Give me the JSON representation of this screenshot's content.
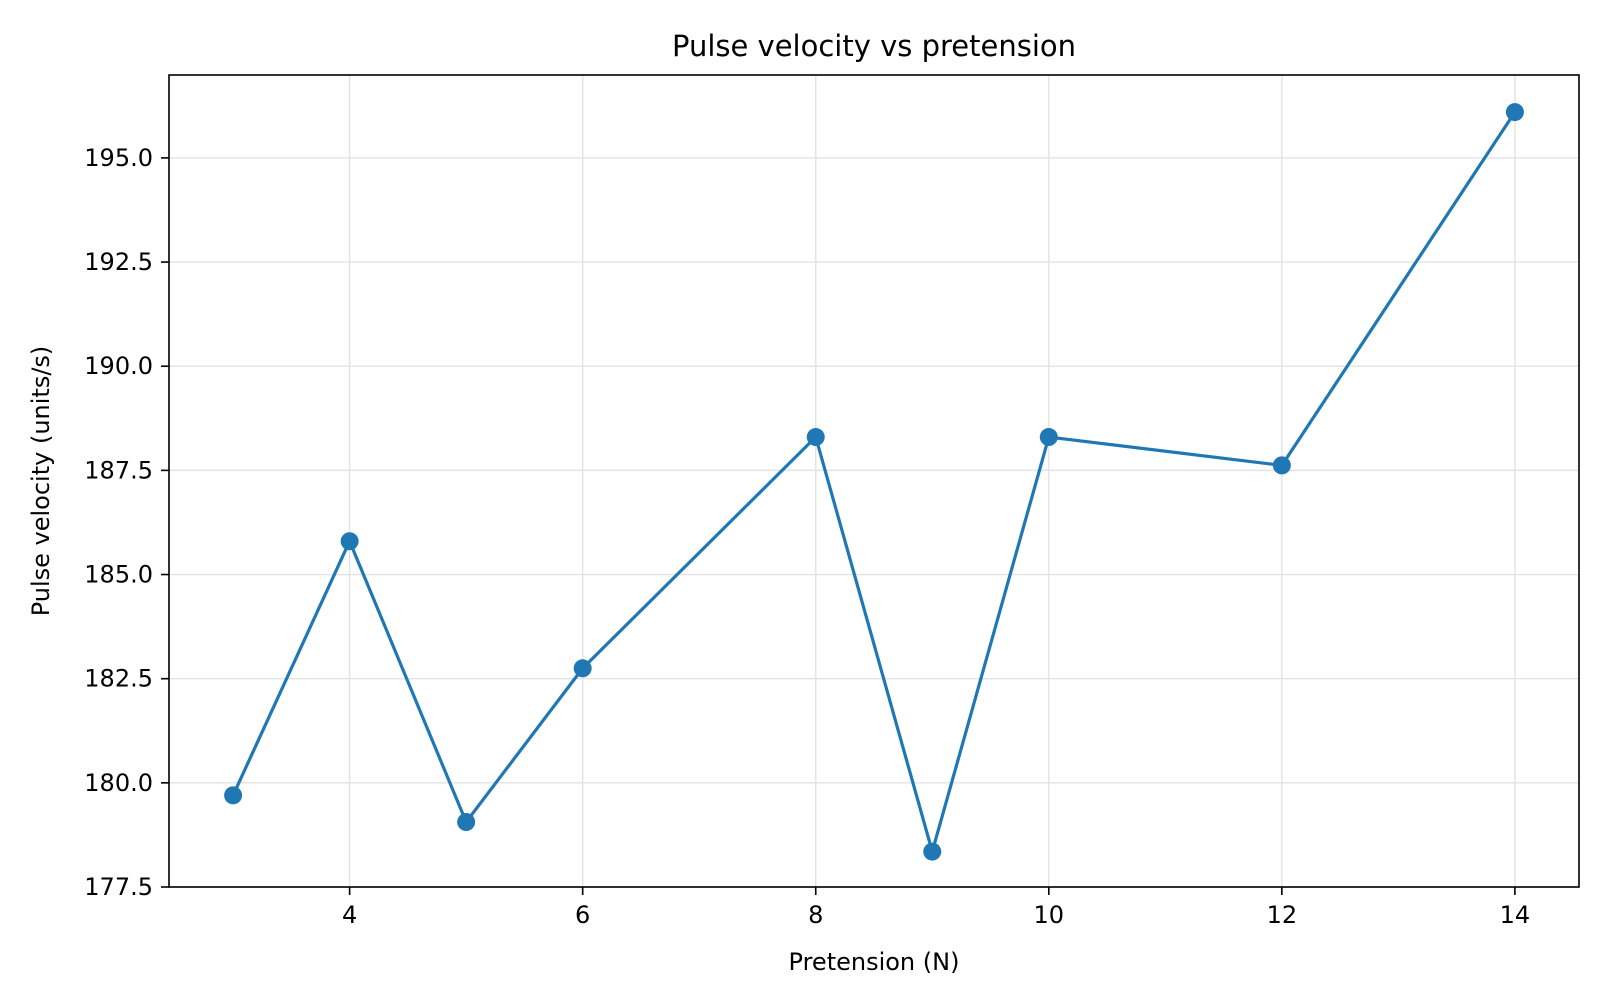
{
  "chart_data": {
    "type": "line",
    "title": "Pulse velocity vs pretension",
    "xlabel": "Pretension (N)",
    "ylabel": "Pulse velocity (units/s)",
    "xlim": [
      2.45,
      14.55
    ],
    "ylim": [
      177.5,
      196.99
    ],
    "x_ticks": [
      4,
      6,
      8,
      10,
      12,
      14
    ],
    "y_ticks": [
      177.5,
      180.0,
      182.5,
      185.0,
      187.5,
      190.0,
      192.5,
      195.0
    ],
    "grid": true,
    "series": [
      {
        "color": "#1f77b4",
        "marker": "circle",
        "x": [
          3,
          4,
          5,
          6,
          8,
          9,
          10,
          12,
          14
        ],
        "y": [
          179.7,
          185.8,
          179.06,
          182.75,
          188.3,
          178.35,
          188.3,
          187.62,
          196.1
        ]
      }
    ]
  }
}
